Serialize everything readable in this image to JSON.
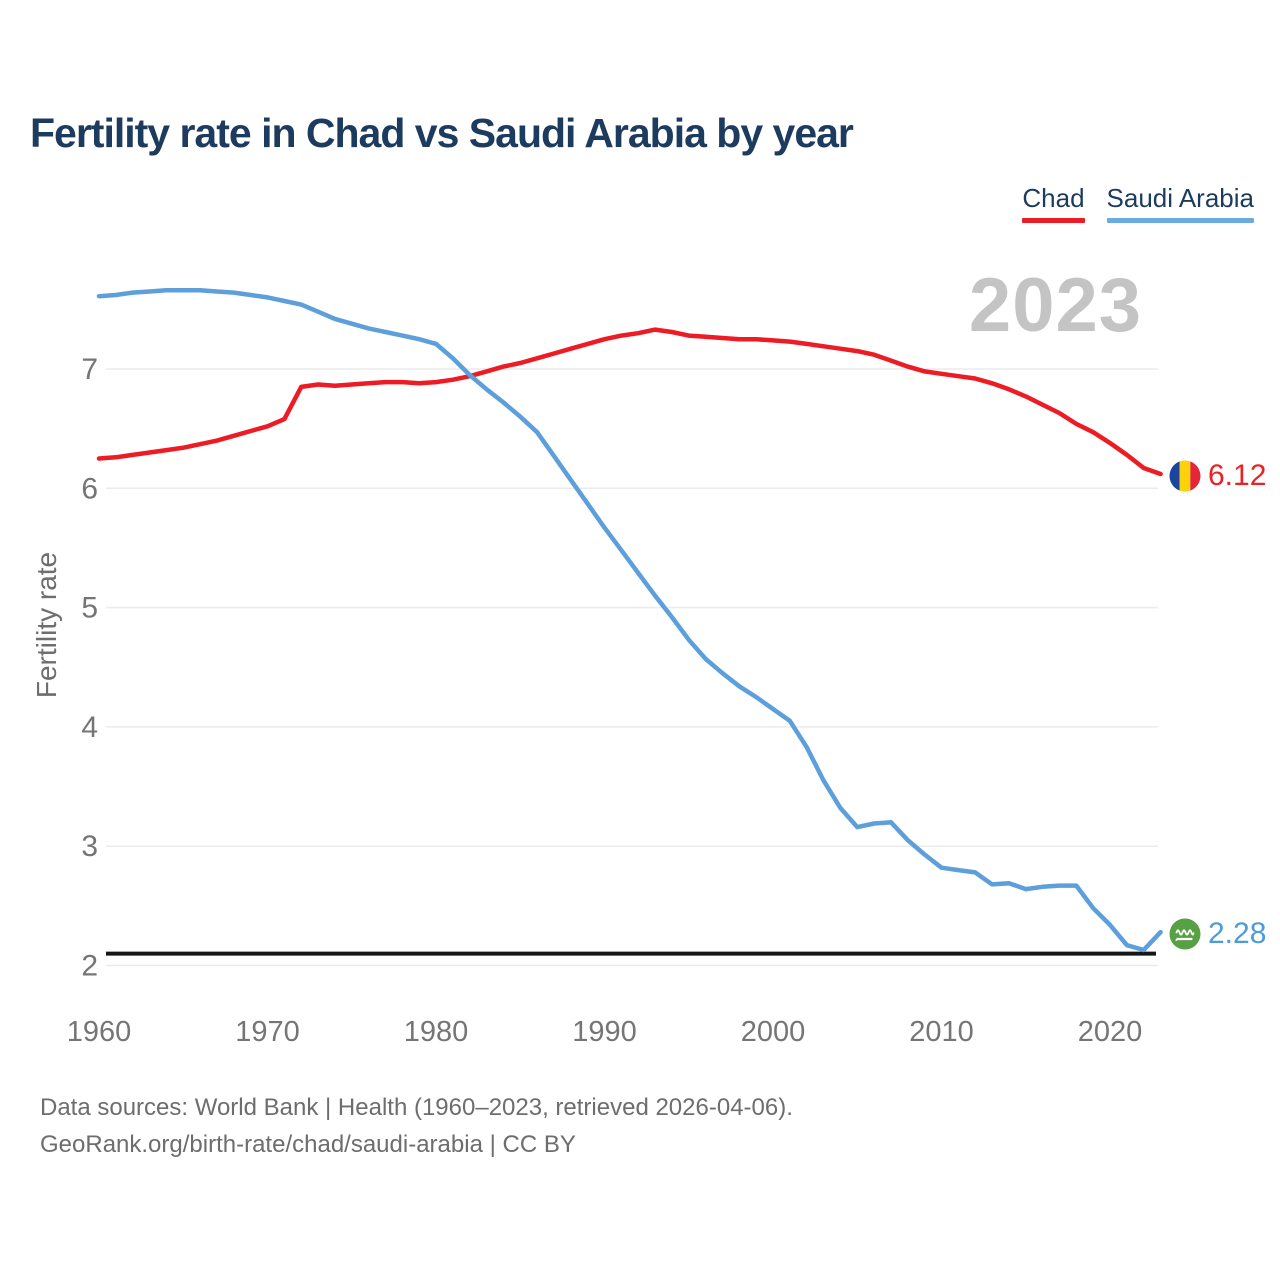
{
  "title": "Fertility rate in Chad vs Saudi Arabia by year",
  "watermark": "2023",
  "legend": [
    {
      "label": "Chad",
      "color": "#ed1c24"
    },
    {
      "label": "Saudi Arabia",
      "color": "#6babe3"
    }
  ],
  "axes": {
    "y_label": "Fertility rate",
    "y_ticks": [
      7,
      6,
      5,
      4,
      3,
      2
    ],
    "x_ticks": [
      1960,
      1970,
      1980,
      1990,
      2000,
      2010,
      2020
    ]
  },
  "reference_line": {
    "value": 2.1,
    "color": "#161616"
  },
  "end_labels": [
    {
      "series": "Chad",
      "value": "6.12",
      "flag": "chad"
    },
    {
      "series": "Saudi Arabia",
      "value": "2.28",
      "flag": "saudi-arabia"
    }
  ],
  "footer": {
    "line1": "Data sources: World Bank | Health (1960–2023, retrieved 2026-04-06).",
    "line2": "GeoRank.org/birth-rate/chad/saudi-arabia | CC BY"
  },
  "colors": {
    "chad_line": "#ed1c24",
    "saudi_line": "#5d9fdb",
    "title_text": "#1c3b5e",
    "tick_text": "#757575",
    "gridline": "#ebebeb",
    "watermark": "#c4c4c4",
    "reference_line": "#161616"
  },
  "chart_data": {
    "type": "line",
    "title": "Fertility rate in Chad vs Saudi Arabia by year",
    "xlabel": "",
    "ylabel": "Fertility rate",
    "x_range": [
      1960,
      2023
    ],
    "ylim": [
      2,
      7.8
    ],
    "grid": "horizontal",
    "legend_position": "top-right",
    "annotations": {
      "replacement_level_line": 2.1,
      "year_watermark": "2023"
    },
    "x": [
      1960,
      1961,
      1962,
      1963,
      1964,
      1965,
      1966,
      1967,
      1968,
      1969,
      1970,
      1971,
      1972,
      1973,
      1974,
      1975,
      1976,
      1977,
      1978,
      1979,
      1980,
      1981,
      1982,
      1983,
      1984,
      1985,
      1986,
      1987,
      1988,
      1989,
      1990,
      1991,
      1992,
      1993,
      1994,
      1995,
      1996,
      1997,
      1998,
      1999,
      2000,
      2001,
      2002,
      2003,
      2004,
      2005,
      2006,
      2007,
      2008,
      2009,
      2010,
      2011,
      2012,
      2013,
      2014,
      2015,
      2016,
      2017,
      2018,
      2019,
      2020,
      2021,
      2022,
      2023
    ],
    "series": [
      {
        "name": "Chad",
        "color": "#ed1c24",
        "values": [
          6.25,
          6.26,
          6.28,
          6.3,
          6.32,
          6.34,
          6.37,
          6.4,
          6.44,
          6.48,
          6.52,
          6.58,
          6.85,
          6.87,
          6.86,
          6.87,
          6.88,
          6.89,
          6.89,
          6.88,
          6.89,
          6.91,
          6.94,
          6.98,
          7.02,
          7.05,
          7.09,
          7.13,
          7.17,
          7.21,
          7.25,
          7.28,
          7.3,
          7.33,
          7.31,
          7.28,
          7.27,
          7.26,
          7.25,
          7.25,
          7.24,
          7.23,
          7.21,
          7.19,
          7.17,
          7.15,
          7.12,
          7.07,
          7.02,
          6.98,
          6.96,
          6.94,
          6.92,
          6.88,
          6.83,
          6.77,
          6.7,
          6.63,
          6.54,
          6.47,
          6.38,
          6.28,
          6.17,
          6.12
        ]
      },
      {
        "name": "Saudi Arabia",
        "color": "#5d9fdb",
        "values": [
          7.61,
          7.62,
          7.64,
          7.65,
          7.66,
          7.66,
          7.66,
          7.65,
          7.64,
          7.62,
          7.6,
          7.57,
          7.54,
          7.48,
          7.42,
          7.38,
          7.34,
          7.31,
          7.28,
          7.25,
          7.21,
          7.09,
          6.95,
          6.83,
          6.72,
          6.6,
          6.47,
          6.27,
          6.07,
          5.87,
          5.67,
          5.48,
          5.29,
          5.1,
          4.92,
          4.73,
          4.57,
          4.45,
          4.34,
          4.25,
          4.15,
          4.05,
          3.83,
          3.55,
          3.32,
          3.16,
          3.19,
          3.2,
          3.05,
          2.93,
          2.82,
          2.8,
          2.78,
          2.68,
          2.69,
          2.64,
          2.66,
          2.67,
          2.67,
          2.48,
          2.34,
          2.17,
          2.13,
          2.28
        ]
      }
    ]
  }
}
